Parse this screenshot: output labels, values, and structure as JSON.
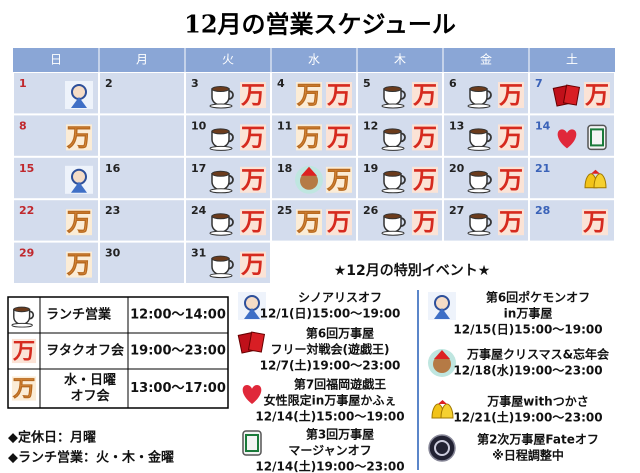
{
  "title": "12月の営業スケジュール",
  "icon_glyph": "万",
  "calendar": {
    "weekdays": [
      "日",
      "月",
      "火",
      "水",
      "木",
      "金",
      "土"
    ],
    "weeks": [
      [
        {
          "date": "1",
          "icons": [
            "character"
          ]
        },
        {
          "date": "2",
          "icons": []
        },
        {
          "date": "3",
          "icons": [
            "lunch",
            "otaku"
          ]
        },
        {
          "date": "4",
          "icons": [
            "wed-sun",
            "otaku"
          ]
        },
        {
          "date": "5",
          "icons": [
            "lunch",
            "otaku"
          ]
        },
        {
          "date": "6",
          "icons": [
            "lunch",
            "otaku"
          ]
        },
        {
          "date": "7",
          "icons": [
            "cards",
            "otaku"
          ]
        }
      ],
      [
        {
          "date": "8",
          "icons": [
            "wed-sun"
          ]
        },
        {
          "date": null,
          "icons": []
        },
        {
          "date": "10",
          "icons": [
            "lunch",
            "otaku"
          ]
        },
        {
          "date": "11",
          "icons": [
            "wed-sun",
            "otaku"
          ]
        },
        {
          "date": "12",
          "icons": [
            "lunch",
            "otaku"
          ]
        },
        {
          "date": "13",
          "icons": [
            "lunch",
            "otaku"
          ]
        },
        {
          "date": "14",
          "icons": [
            "heart",
            "mahjong"
          ]
        }
      ],
      [
        {
          "date": "15",
          "icons": [
            "character"
          ]
        },
        {
          "date": "16",
          "icons": []
        },
        {
          "date": "17",
          "icons": [
            "lunch",
            "otaku"
          ]
        },
        {
          "date": "18",
          "icons": [
            "bear",
            "wed-sun"
          ]
        },
        {
          "date": "19",
          "icons": [
            "lunch",
            "otaku"
          ]
        },
        {
          "date": "20",
          "icons": [
            "lunch",
            "otaku"
          ]
        },
        {
          "date": "21",
          "icons": [
            "bells"
          ]
        }
      ],
      [
        {
          "date": "22",
          "icons": [
            "wed-sun"
          ]
        },
        {
          "date": "23",
          "icons": []
        },
        {
          "date": "24",
          "icons": [
            "lunch",
            "otaku"
          ]
        },
        {
          "date": "25",
          "icons": [
            "wed-sun",
            "otaku"
          ]
        },
        {
          "date": "26",
          "icons": [
            "lunch",
            "otaku"
          ]
        },
        {
          "date": "27",
          "icons": [
            "lunch",
            "otaku"
          ]
        },
        {
          "date": "28",
          "icons": [
            "otaku"
          ]
        }
      ],
      [
        {
          "date": "29",
          "icons": [
            "wed-sun"
          ]
        },
        {
          "date": "30",
          "icons": []
        },
        {
          "date": "31",
          "icons": [
            "lunch",
            "otaku"
          ]
        }
      ]
    ]
  },
  "legend": [
    {
      "icon": "lunch",
      "name": "ランチ営業",
      "time": "12:00～14:00"
    },
    {
      "icon": "otaku",
      "name": "ヲタクオフ会",
      "time": "19:00～23:00"
    },
    {
      "icon": "wed-sun",
      "name": "水・日曜\nオフ会",
      "time": "13:00～17:00"
    }
  ],
  "notes": [
    "◆定休日：月曜",
    "◆ランチ営業：火・木・金曜"
  ],
  "events_title": "★12月の特別イベント★",
  "events": [
    {
      "icon": "character",
      "lines": [
        "シノアリスオフ",
        "12/1(日)15:00～19:00"
      ]
    },
    {
      "icon": "cards",
      "lines": [
        "第6回万事屋",
        "フリー対戦会(遊戯王)",
        "12/7(土)19:00～23:00"
      ]
    },
    {
      "icon": "heart",
      "lines": [
        "第7回福岡遊戯王",
        "女性限定in万事屋かふぇ",
        "12/14(土)15:00～19:00"
      ]
    },
    {
      "icon": "mahjong",
      "lines": [
        "第3回万事屋",
        "マージャンオフ",
        "12/14(土)19:00～23:00"
      ]
    },
    {
      "icon": "character",
      "lines": [
        "第6回ポケモンオフ",
        "in万事屋",
        "12/15(日)15:00～19:00"
      ]
    },
    {
      "icon": "bear",
      "lines": [
        "万事屋クリスマス&忘年会",
        "12/18(水)19:00～23:00"
      ]
    },
    {
      "icon": "bells",
      "lines": [
        "万事屋withつかさ",
        "12/21(土)19:00～23:00"
      ]
    },
    {
      "icon": "fate",
      "lines": [
        "第2次万事屋Fateオフ",
        "※日程調整中"
      ]
    }
  ]
}
